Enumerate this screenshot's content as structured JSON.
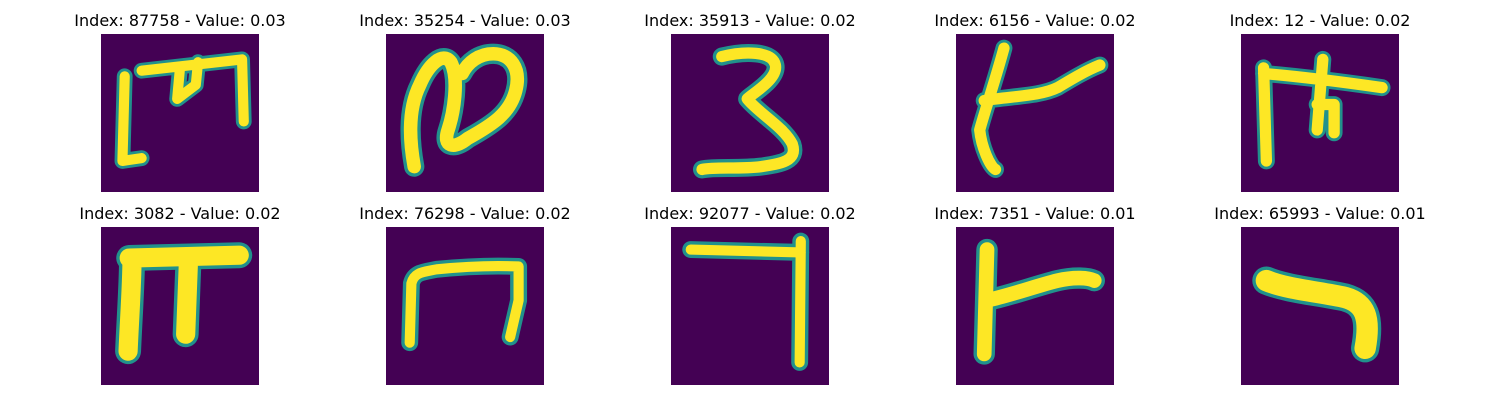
{
  "figure": {
    "panels": [
      {
        "title": "Index: 87758 - Value: 0.03",
        "glyph": "m-shape"
      },
      {
        "title": "Index: 35254 - Value: 0.03",
        "glyph": "n-loop"
      },
      {
        "title": "Index: 35913 - Value: 0.02",
        "glyph": "three"
      },
      {
        "title": "Index: 6156 - Value: 0.02",
        "glyph": "k-shape"
      },
      {
        "title": "Index: 12 - Value: 0.02",
        "glyph": "pi-shape"
      },
      {
        "title": "Index: 3082 - Value: 0.02",
        "glyph": "pi-thick"
      },
      {
        "title": "Index: 76298 - Value: 0.02",
        "glyph": "arch"
      },
      {
        "title": "Index: 92077 - Value: 0.02",
        "glyph": "seven"
      },
      {
        "title": "Index: 7351 - Value: 0.01",
        "glyph": "r-shape"
      },
      {
        "title": "Index: 65993 - Value: 0.01",
        "glyph": "hook"
      }
    ],
    "colors": {
      "background": "#440154",
      "foreground": "#fde725",
      "edge": "#21918c",
      "edge2": "#5ec962"
    }
  }
}
